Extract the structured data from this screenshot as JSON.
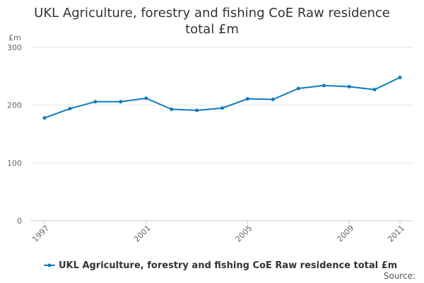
{
  "chart_data": {
    "type": "line",
    "title_lines": [
      "UKL Agriculture, forestry and fishing CoE Raw residence",
      "total £m"
    ],
    "ylabel": "£m",
    "xlabel": "",
    "ylim": [
      0,
      300
    ],
    "yticks": [
      0,
      100,
      200,
      300
    ],
    "xlim": [
      1997,
      2011
    ],
    "xticks": [
      1997,
      2001,
      2005,
      2009,
      2011
    ],
    "grid": true,
    "legend_position": "bottom",
    "series": [
      {
        "name": "UKL Agriculture, forestry and fishing CoE Raw residence total £m",
        "color": "#0e7bbd",
        "x": [
          1997,
          1998,
          1999,
          2000,
          2001,
          2002,
          2003,
          2004,
          2005,
          2006,
          2007,
          2008,
          2009,
          2010,
          2011
        ],
        "values": [
          178,
          194,
          206,
          206,
          212,
          193,
          191,
          195,
          211,
          210,
          229,
          234,
          232,
          227,
          248
        ]
      }
    ]
  },
  "source_text": "Source:"
}
